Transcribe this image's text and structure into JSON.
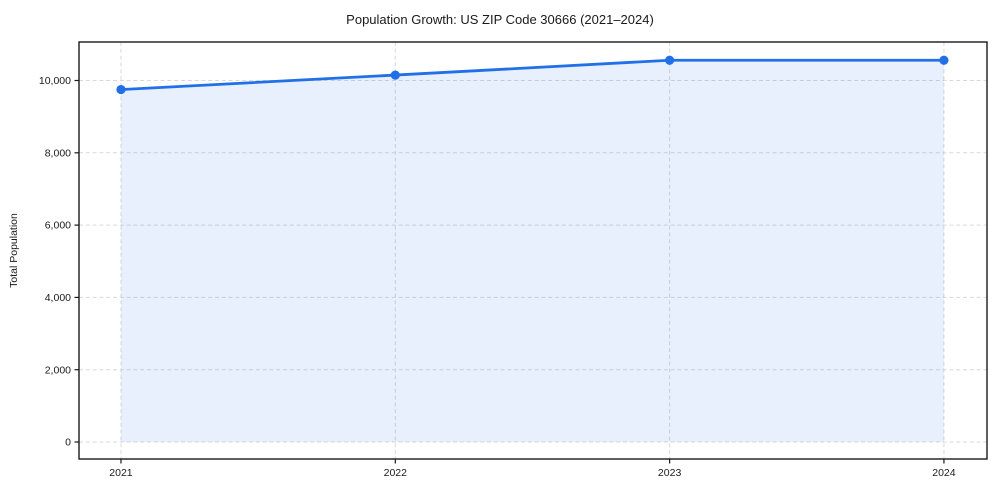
{
  "chart_data": {
    "type": "area",
    "title": "Population Growth: US ZIP Code 30666 (2021–2024)",
    "xlabel": "",
    "ylabel": "Total Population",
    "x": [
      2021,
      2022,
      2023,
      2024
    ],
    "series": [
      {
        "name": "Total Population",
        "values": [
          9750,
          10150,
          10560,
          10560
        ]
      }
    ],
    "xticks": [
      2021,
      2022,
      2023,
      2024
    ],
    "xtick_labels": [
      "2021",
      "2022",
      "2023",
      "2024"
    ],
    "yticks": [
      0,
      2000,
      4000,
      6000,
      8000,
      10000
    ],
    "ytick_labels": [
      "0",
      "2,000",
      "4,000",
      "6,000",
      "8,000",
      "10,000"
    ],
    "xlim": [
      2020.847,
      2024.157
    ],
    "ylim": [
      -470,
      11065
    ],
    "grid": true,
    "grid_dashed": true,
    "legend": false,
    "baseline": 0,
    "line_color": "#2170e8",
    "marker_color": "#2170e8",
    "fill_color": "#2170e8",
    "fill_opacity": 0.1,
    "grid_color": "#d9d9d9",
    "spine_color": "#1a1a1a",
    "text_color": "#1a1a1a",
    "background_color": "#ffffff"
  }
}
